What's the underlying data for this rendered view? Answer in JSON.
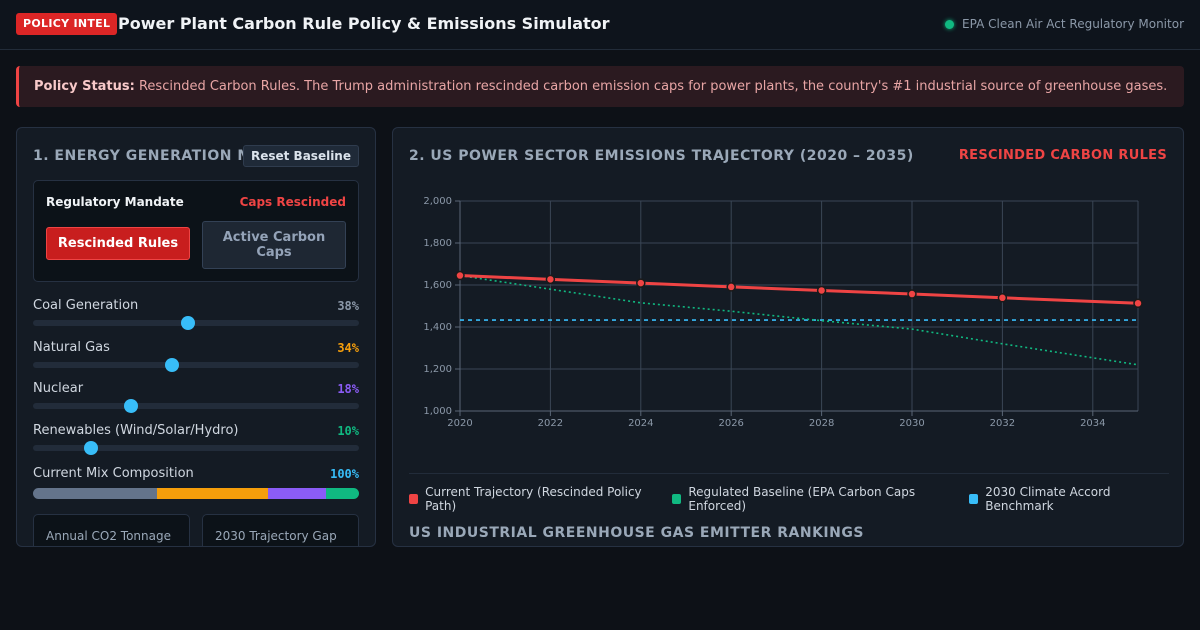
{
  "header": {
    "badge": "POLICY INTEL",
    "title": "Power Plant Carbon Rule Policy & Emissions Simulator",
    "monitor": "EPA Clean Air Act Regulatory Monitor"
  },
  "alert": {
    "label": "Policy Status:",
    "text": "Rescinded Carbon Rules. The Trump administration rescinded carbon emission caps for power plants, the country's #1 industrial source of greenhouse gases."
  },
  "left_panel": {
    "title": "1. ENERGY GENERATION MIX",
    "reset_label": "Reset Baseline",
    "mandate": {
      "label": "Regulatory Mandate",
      "status": "Caps Rescinded",
      "btn_rescinded": "Rescinded Rules",
      "btn_active": "Active Carbon Caps"
    },
    "sliders": [
      {
        "label": "Coal Generation",
        "value_text": "38%",
        "value": 38,
        "max": 80,
        "color": "#8b98a8"
      },
      {
        "label": "Natural Gas",
        "value_text": "34%",
        "value": 34,
        "max": 80,
        "color": "#f59e0b"
      },
      {
        "label": "Nuclear",
        "value_text": "18%",
        "value": 18,
        "max": 60,
        "color": "#8b5cf6"
      },
      {
        "label": "Renewables (Wind/Solar/Hydro)",
        "value_text": "10%",
        "value": 10,
        "max": 56,
        "color": "#10b981"
      }
    ],
    "mix": {
      "label": "Current Mix Composition",
      "total": "100%",
      "segments": [
        {
          "value": 38,
          "color": "#64748b"
        },
        {
          "value": 34,
          "color": "#f59e0b"
        },
        {
          "value": 18,
          "color": "#8b5cf6"
        },
        {
          "value": 10,
          "color": "#10b981"
        }
      ]
    },
    "stats": {
      "annual_label": "Annual CO2 Tonnage",
      "gap_label": "2030 Trajectory Gap"
    }
  },
  "right_panel": {
    "title": "2. US POWER SECTOR EMISSIONS TRAJECTORY (2020 – 2035)",
    "status": "RESCINDED CARBON RULES",
    "legend": [
      {
        "label": "Current Trajectory (Rescinded Policy Path)",
        "color": "#ef4444"
      },
      {
        "label": "Regulated Baseline (EPA Carbon Caps Enforced)",
        "color": "#10b981"
      },
      {
        "label": "2030 Climate Accord Benchmark",
        "color": "#38bdf8"
      }
    ],
    "rankings_title": "US INDUSTRIAL GREENHOUSE GAS EMITTER RANKINGS"
  },
  "chart_data": {
    "type": "line",
    "xlim": [
      2020,
      2035
    ],
    "ylim": [
      1000,
      2000
    ],
    "x_ticks": [
      "2020",
      "2022",
      "2024",
      "2026",
      "2028",
      "2030",
      "2032",
      "2034"
    ],
    "y_ticks": [
      "1,000",
      "1,200",
      "1,400",
      "1,600",
      "1,800",
      "2,000"
    ],
    "grid": true,
    "series": [
      {
        "name": "Current Trajectory (Rescinded Policy Path)",
        "color": "#ef4444",
        "style": "solid",
        "x": [
          2020,
          2022,
          2024,
          2026,
          2028,
          2030,
          2032,
          2035
        ],
        "y": [
          1645,
          1627,
          1609,
          1591,
          1574,
          1557,
          1539,
          1513
        ]
      },
      {
        "name": "Regulated Baseline (EPA Carbon Caps Enforced)",
        "color": "#10b981",
        "style": "dotted",
        "x": [
          2020,
          2022,
          2024,
          2026,
          2028,
          2030,
          2032,
          2035
        ],
        "y": [
          1645,
          1580,
          1515,
          1475,
          1430,
          1390,
          1320,
          1220
        ]
      },
      {
        "name": "2030 Climate Accord Benchmark",
        "color": "#38bdf8",
        "style": "dashed",
        "x": [
          2020,
          2035
        ],
        "y": [
          1433,
          1433
        ]
      }
    ]
  }
}
